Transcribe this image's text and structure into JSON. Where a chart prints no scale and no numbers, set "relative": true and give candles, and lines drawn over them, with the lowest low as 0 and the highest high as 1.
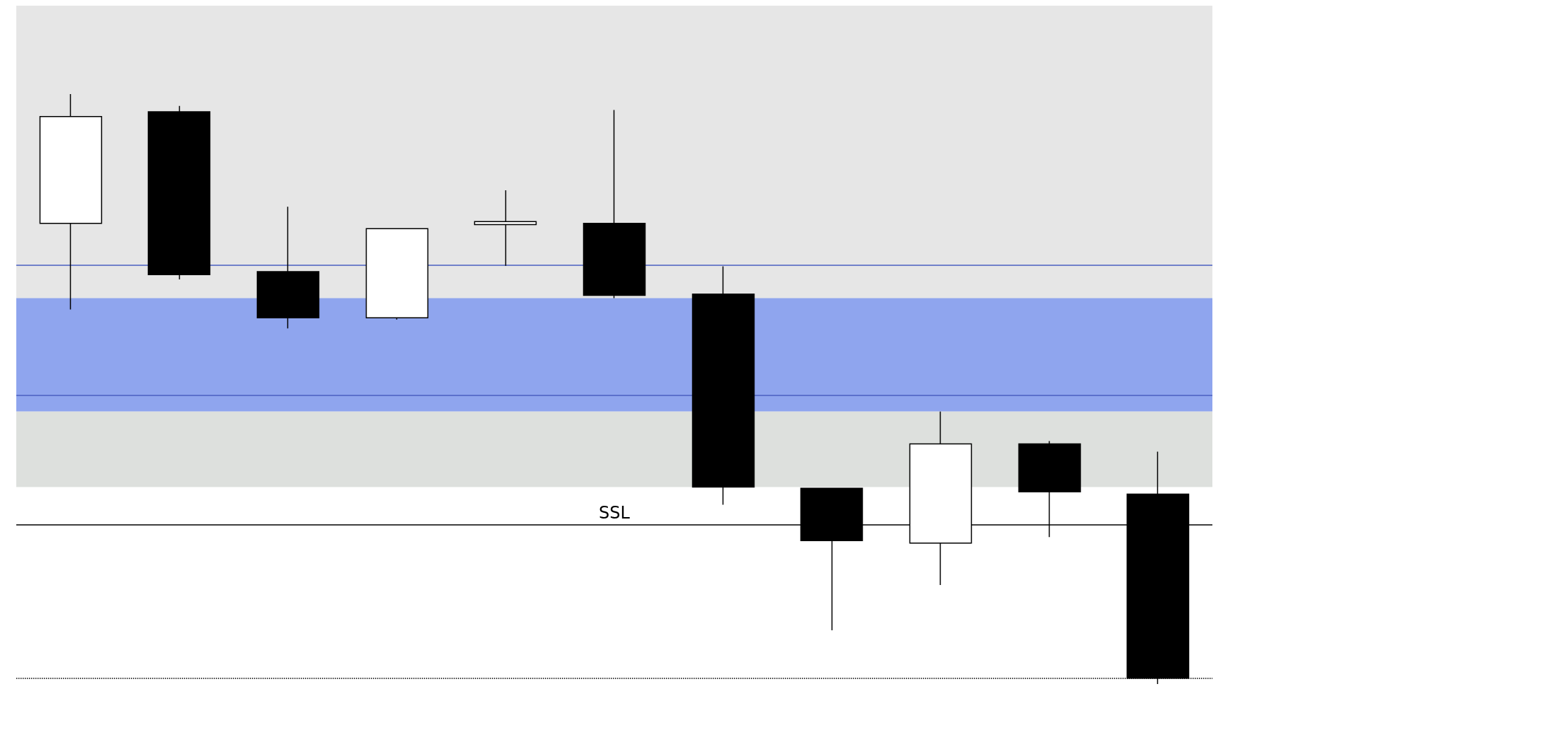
{
  "chart_data": {
    "type": "candlestick",
    "relative": true,
    "categories": [
      null,
      null,
      null,
      null,
      null,
      null,
      null,
      null,
      null,
      null,
      null
    ],
    "ohlc": [
      [
        0.781,
        1.0,
        0.635,
        0.962
      ],
      [
        0.97,
        0.98,
        0.686,
        0.694
      ],
      [
        0.699,
        0.809,
        0.603,
        0.621
      ],
      [
        0.621,
        0.772,
        0.618,
        0.772
      ],
      [
        0.779,
        0.837,
        0.709,
        0.784
      ],
      [
        0.781,
        0.973,
        0.654,
        0.659
      ],
      [
        0.661,
        0.708,
        0.304,
        0.334
      ],
      [
        0.332,
        0.332,
        0.091,
        0.243
      ],
      [
        0.239,
        0.462,
        0.168,
        0.407
      ],
      [
        0.407,
        0.412,
        0.249,
        0.326
      ],
      [
        0.322,
        0.394,
        0.0,
        0.01
      ]
    ],
    "bands": [
      {
        "axis": "y",
        "from": 0.482,
        "to": 1.15,
        "color": "#e6e6e6"
      },
      {
        "axis": "y",
        "from": 0.462,
        "to": 0.654,
        "color": "#8fa5ee"
      },
      {
        "axis": "y",
        "from": 0.334,
        "to": 0.462,
        "color": "#dde0dd"
      }
    ],
    "ref_lines": [
      {
        "axis": "y",
        "value": 0.272,
        "label": "SSL",
        "color": "#000000",
        "line_style": "solid"
      },
      {
        "axis": "y",
        "value": 0.01,
        "color": "#000000",
        "line_style": "dotted"
      },
      {
        "axis": "y",
        "value": 0.708,
        "color": "#4a5fc1",
        "line_style": "solid"
      },
      {
        "axis": "y",
        "value": 0.493,
        "color": "#4a5fc1",
        "line_style": "solid"
      }
    ],
    "grid": false
  }
}
